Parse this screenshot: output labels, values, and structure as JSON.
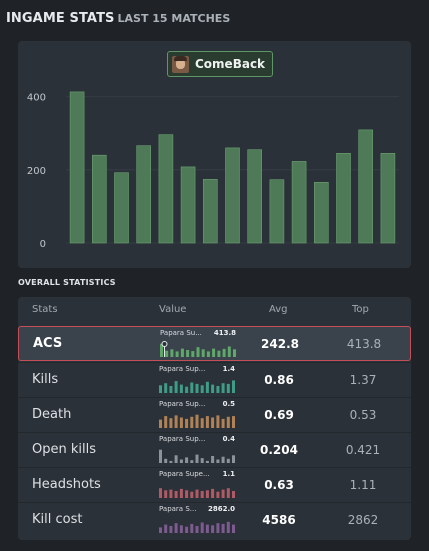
{
  "header": {
    "title": "INGAME STATS",
    "subtitle": "LAST 15 MATCHES"
  },
  "chart_panel": {
    "player_name": "ComeBack",
    "avatar_icon": "player-avatar"
  },
  "chart_data": {
    "type": "bar",
    "title": "",
    "xlabel": "",
    "ylabel": "",
    "ylim": [
      0,
      470
    ],
    "yticks": [
      "0",
      "200",
      "400"
    ],
    "values": [
      413,
      240,
      192,
      266,
      296,
      208,
      174,
      260,
      255,
      173,
      223,
      166,
      245,
      309,
      245
    ],
    "color": "#4f7a57",
    "grid": true
  },
  "stats_section": {
    "label": "OVERALL STATISTICS",
    "columns": {
      "stat": "Stats",
      "value": "Value",
      "avg": "Avg",
      "top": "Top"
    },
    "rows": [
      {
        "label": "ACS",
        "player": "Papara Su...",
        "player_value": "413.8",
        "avg": "242.8",
        "top": "413.8",
        "selected": true,
        "color": "#5fa86a",
        "bars": [
          0.95,
          0.45,
          0.55,
          0.4,
          0.6,
          0.5,
          0.42,
          0.7,
          0.55,
          0.4,
          0.6,
          0.45,
          0.58,
          0.75,
          0.55
        ]
      },
      {
        "label": "Kills",
        "player": "Papara Sup...",
        "player_value": "1.4",
        "avg": "0.86",
        "top": "1.37",
        "selected": false,
        "color": "#3f9c86",
        "bars": [
          0.55,
          0.7,
          0.5,
          0.85,
          0.6,
          0.45,
          0.75,
          0.65,
          0.55,
          0.8,
          0.6,
          0.5,
          0.7,
          0.65,
          0.9
        ]
      },
      {
        "label": "Death",
        "player": "Papara Sup...",
        "player_value": "0.5",
        "avg": "0.69",
        "top": "0.53",
        "selected": false,
        "color": "#b08256",
        "bars": [
          0.6,
          0.85,
          0.7,
          0.9,
          0.75,
          0.65,
          0.8,
          0.95,
          0.7,
          0.85,
          0.75,
          0.9,
          0.65,
          0.8,
          0.85
        ]
      },
      {
        "label": "Open kills",
        "player": "Papara Sup...",
        "player_value": "0.4",
        "avg": "0.204",
        "top": "0.421",
        "selected": false,
        "color": "#8c939b",
        "bars": [
          0.95,
          0.3,
          0.15,
          0.55,
          0.25,
          0.4,
          0.2,
          0.6,
          0.35,
          0.15,
          0.5,
          0.25,
          0.45,
          0.3,
          0.55
        ]
      },
      {
        "label": "Headshots",
        "player": "Papara Supe...",
        "player_value": "1.1",
        "avg": "0.63",
        "top": "1.11",
        "selected": false,
        "color": "#b05a66",
        "bars": [
          0.7,
          0.55,
          0.6,
          0.5,
          0.65,
          0.55,
          0.45,
          0.6,
          0.5,
          0.55,
          0.65,
          0.45,
          0.6,
          0.7,
          0.5
        ]
      },
      {
        "label": "Kill cost",
        "player": "Papara S...",
        "player_value": "2862.0",
        "avg": "4586",
        "top": "2862",
        "selected": false,
        "color": "#7d5a8f",
        "bars": [
          0.4,
          0.6,
          0.5,
          0.7,
          0.55,
          0.45,
          0.65,
          0.5,
          0.75,
          0.6,
          0.55,
          0.7,
          0.65,
          0.8,
          0.6
        ]
      }
    ]
  }
}
